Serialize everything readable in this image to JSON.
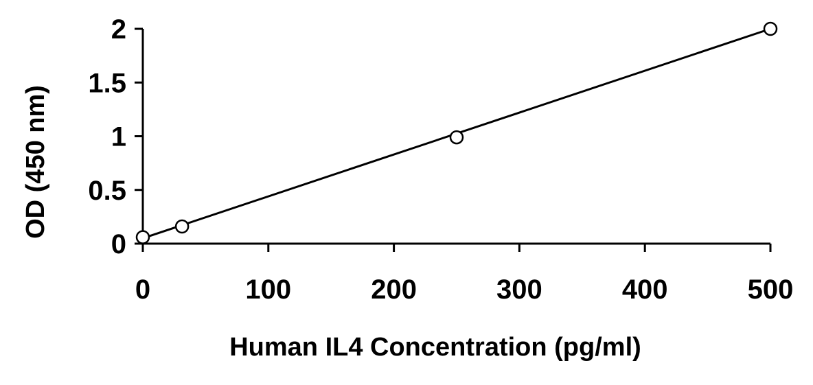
{
  "chart_data": {
    "type": "line",
    "title": "",
    "xlabel": "Human IL4 Concentration (pg/ml)",
    "ylabel": "OD (450 nm)",
    "xlim": [
      0,
      500
    ],
    "ylim": [
      0,
      2
    ],
    "xticks": [
      0,
      100,
      200,
      300,
      400,
      500
    ],
    "yticks": [
      0,
      0.5,
      1,
      1.5,
      2
    ],
    "xtick_labels": [
      "0",
      "100",
      "200",
      "300",
      "400",
      "500"
    ],
    "ytick_labels": [
      "0",
      "0.5",
      "1",
      "1.5",
      "2"
    ],
    "grid": false,
    "legend": "none",
    "series": [
      {
        "x": [
          0,
          31.25,
          250,
          500
        ],
        "y": [
          0.06,
          0.16,
          0.99,
          2.0
        ],
        "marker": "open-circle",
        "color": "#000000"
      }
    ],
    "fit_line": {
      "x": [
        0,
        500
      ],
      "y": [
        0.05,
        2.0
      ]
    }
  }
}
